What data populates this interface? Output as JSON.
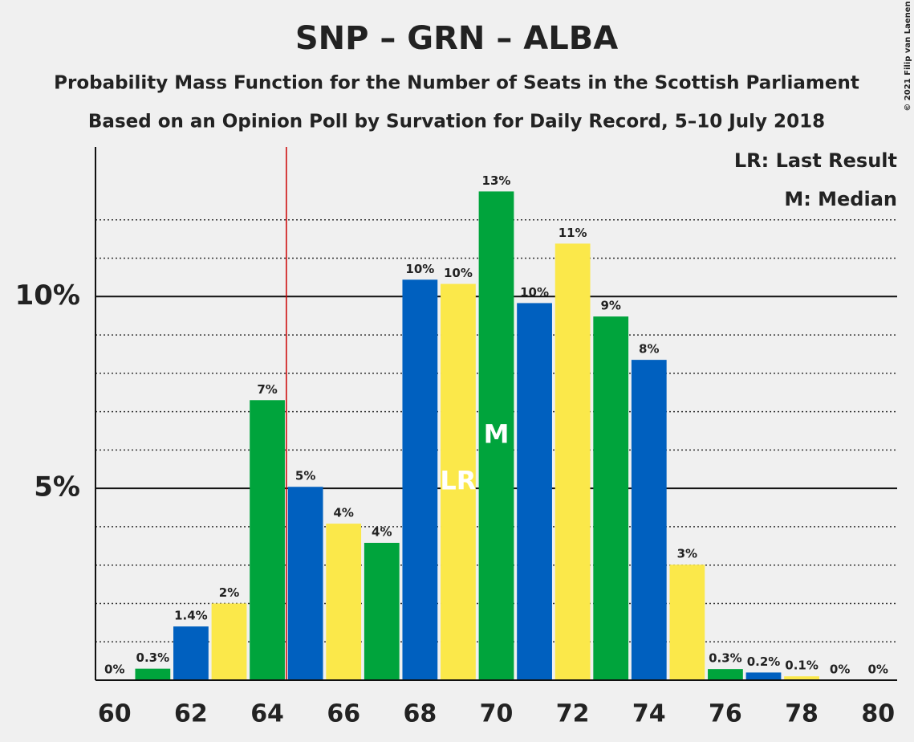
{
  "chart_data": {
    "type": "bar",
    "title": "SNP – GRN – ALBA",
    "subtitle": "Probability Mass Function for the Number of Seats in the Scottish Parliament",
    "subtitle2": "Based on an Opinion Poll by Survation for Daily Record, 5–10 July 2018",
    "copyright": "© 2021 Filip van Laenen",
    "legend": [
      "LR: Last Result",
      "M: Median"
    ],
    "x": [
      60,
      61,
      62,
      63,
      64,
      65,
      66,
      67,
      68,
      69,
      70,
      71,
      72,
      73,
      74,
      75,
      76,
      77,
      78,
      79,
      80
    ],
    "values": [
      0,
      0.3,
      1.4,
      2,
      7.3,
      5.04,
      4.08,
      3.58,
      10.44,
      10.33,
      12.74,
      9.83,
      11.38,
      9.48,
      8.35,
      3.01,
      0.29,
      0.2,
      0.1,
      0,
      0
    ],
    "value_labels": [
      "0%",
      "0.3%",
      "1.4%",
      "2%",
      "7%",
      "5%",
      "4%",
      "4%",
      "10%",
      "10%",
      "13%",
      "10%",
      "11%",
      "9%",
      "8%",
      "3%",
      "0.3%",
      "0.2%",
      "0.1%",
      "0%",
      "0%"
    ],
    "colors": [
      "#0060bf",
      "#00a43c",
      "#0060bf",
      "#fbe84a",
      "#00a43c",
      "#0060bf",
      "#fbe84a",
      "#00a43c",
      "#0060bf",
      "#fbe84a",
      "#00a43c",
      "#0060bf",
      "#fbe84a",
      "#00a43c",
      "#0060bf",
      "#fbe84a",
      "#00a43c",
      "#0060bf",
      "#fbe84a",
      "#00a43c",
      "#0060bf"
    ],
    "markers": [
      {
        "x": 69,
        "label": "LR"
      },
      {
        "x": 70,
        "label": "M"
      }
    ],
    "threshold": 64.5,
    "xlim": [
      59.5,
      80.5
    ],
    "xticks": [
      60,
      62,
      64,
      66,
      68,
      70,
      72,
      74,
      76,
      78,
      80
    ],
    "ylim": [
      0,
      13.9
    ],
    "yticks": [
      {
        "value": 5,
        "label": "5%"
      },
      {
        "value": 10,
        "label": "10%"
      }
    ],
    "minor_yticks": [
      1,
      2,
      3,
      4,
      6,
      7,
      8,
      9,
      11,
      12
    ]
  }
}
